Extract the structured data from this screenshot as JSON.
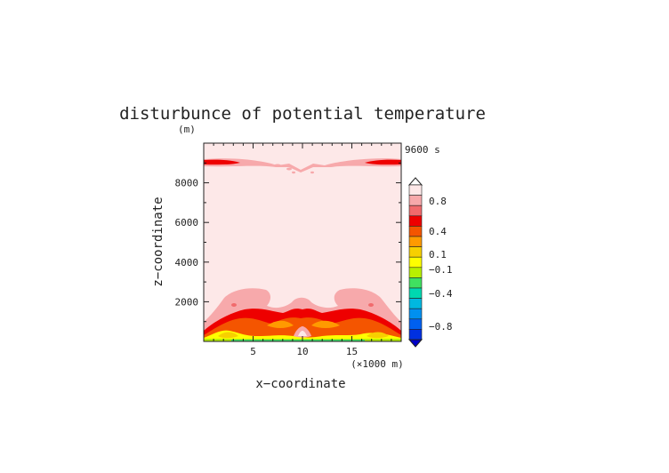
{
  "chart_data": {
    "type": "heatmap",
    "title": "disturbunce of potential temperature",
    "y_unit": "(m)",
    "time_label": "9600 s",
    "xlabel": "x−coordinate",
    "x_unit": "(×1000 m)",
    "ylabel": "z−coordinate",
    "xlim": [
      0,
      20
    ],
    "ylim": [
      0,
      10000
    ],
    "x_ticks": [
      "5",
      "10",
      "15"
    ],
    "x_tick_values": [
      5,
      10,
      15
    ],
    "y_ticks": [
      "2000",
      "4000",
      "6000",
      "8000"
    ],
    "y_tick_values": [
      2000,
      4000,
      6000,
      8000
    ],
    "colorbar": {
      "labels": [
        "0.8",
        "0.4",
        "0.1",
        "−0.1",
        "−0.4",
        "−0.8"
      ],
      "colors": [
        "#fde8e8",
        "#f7a9ab",
        "#f16a6c",
        "#ee0000",
        "#f45500",
        "#ff9a00",
        "#f7d000",
        "#ffff00",
        "#b8f000",
        "#40e060",
        "#00d8b0",
        "#00b8e0",
        "#0090f0",
        "#0060f0",
        "#0030e0"
      ]
    },
    "field_description_levels": {
      "background": 0.9,
      "upper_band": 0.5,
      "low_level_core": 0.2
    }
  }
}
